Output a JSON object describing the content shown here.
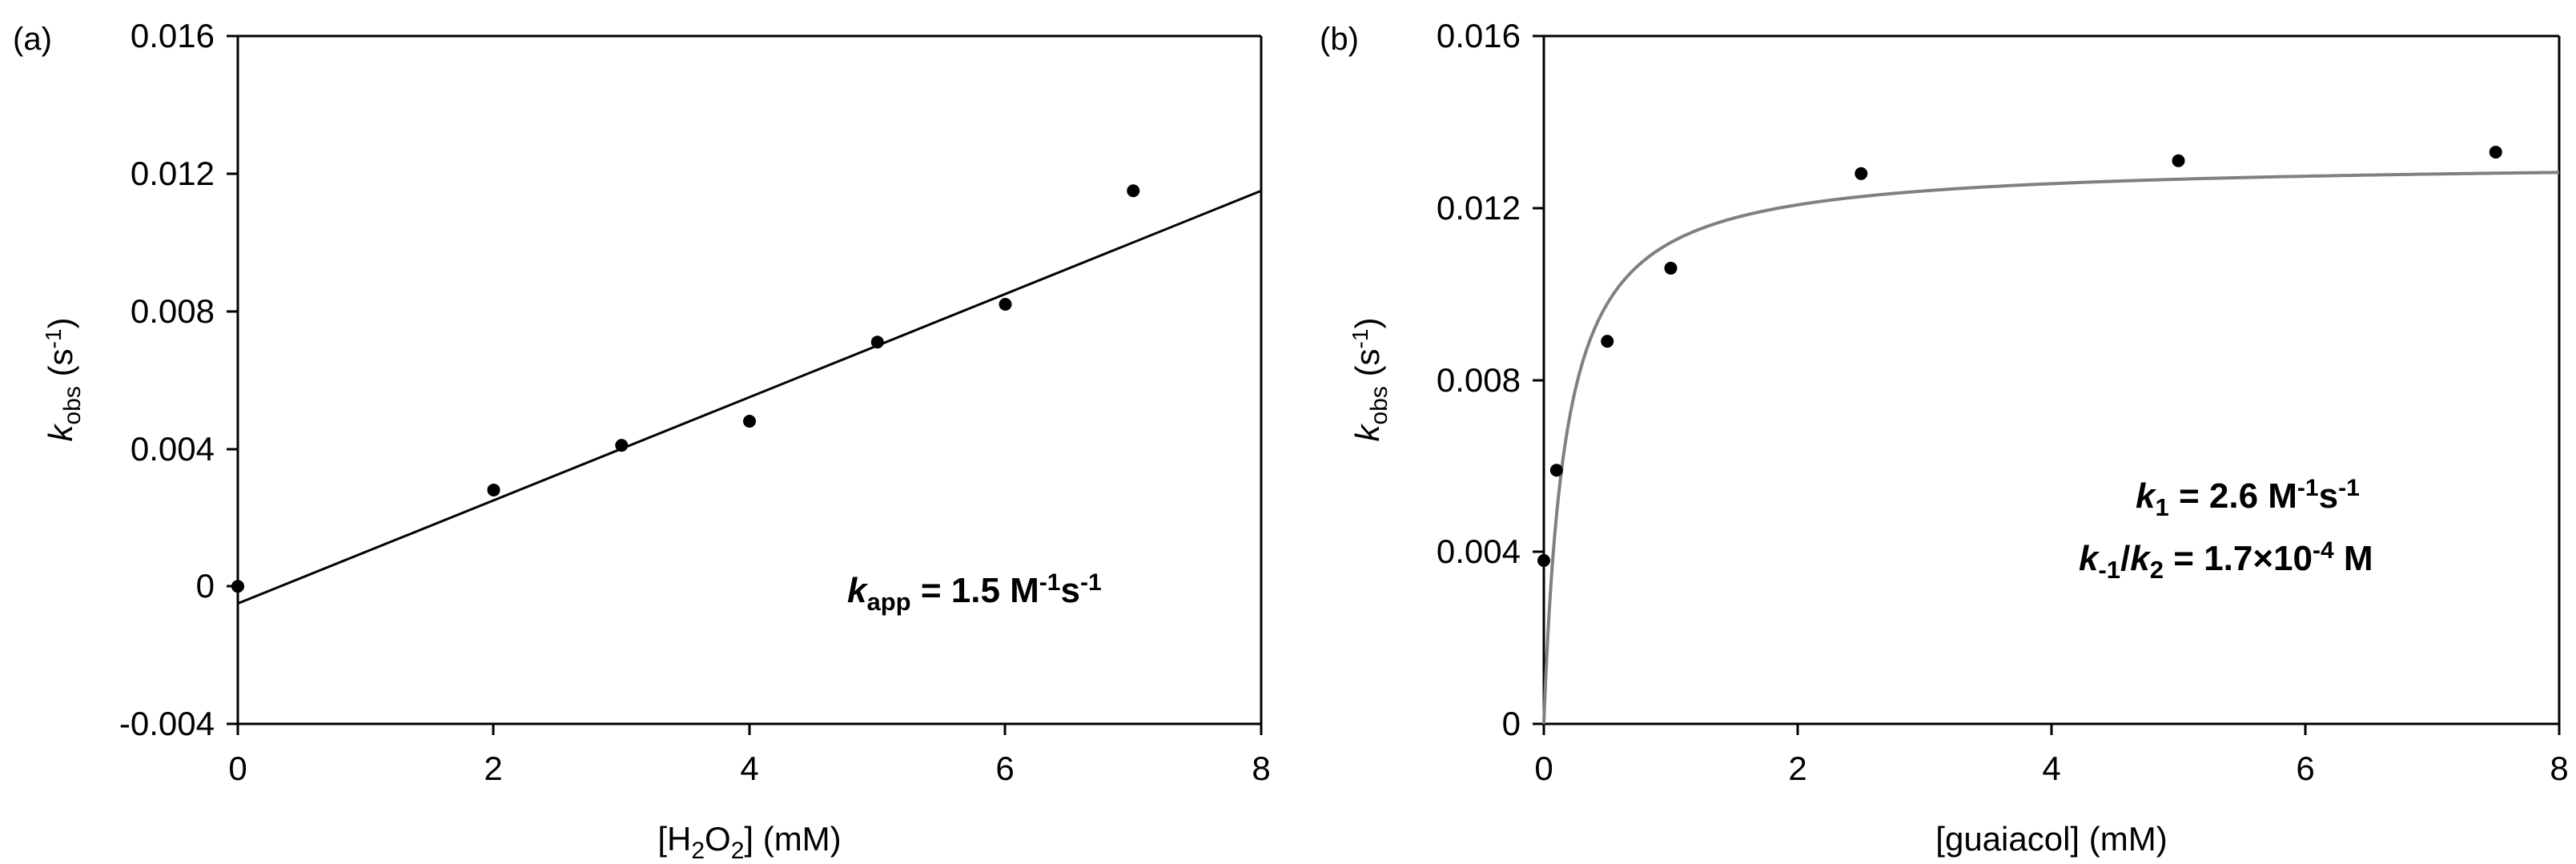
{
  "chart_data": [
    {
      "panel_label": "(a)",
      "type": "scatter",
      "xlabel_parts": [
        "[H",
        "2",
        "O",
        "2",
        "] (mM)"
      ],
      "ylabel_parts": [
        "k",
        "obs",
        " (s",
        "-1",
        ")"
      ],
      "xlim": [
        0,
        8
      ],
      "ylim": [
        -0.004,
        0.016
      ],
      "xticks": [
        "0",
        "2",
        "4",
        "6",
        "8"
      ],
      "yticks": [
        "-0.004",
        "0",
        "0.004",
        "0.008",
        "0.012",
        "0.016"
      ],
      "grid": false,
      "series": [
        {
          "marker": "dot",
          "x": [
            0,
            2,
            3,
            4,
            5,
            6,
            7
          ],
          "y": [
            0.0,
            0.0028,
            0.0041,
            0.0048,
            0.0071,
            0.0082,
            0.0115
          ]
        }
      ],
      "fit": {
        "kind": "linear",
        "slope": 0.0015,
        "intercept": -0.0005,
        "color": "#000000"
      },
      "annotations": [
        [
          "k",
          "app",
          " = 1.5 M",
          "-1",
          "s",
          "-1"
        ]
      ]
    },
    {
      "panel_label": "(b)",
      "type": "scatter",
      "xlabel_parts": [
        "[guaiacol] (mM)"
      ],
      "ylabel_parts": [
        "k",
        "obs",
        " (s",
        "-1",
        ")"
      ],
      "xlim": [
        0,
        8
      ],
      "ylim": [
        0,
        0.016
      ],
      "xticks": [
        "0",
        "2",
        "4",
        "6",
        "8"
      ],
      "yticks": [
        "0",
        "0.004",
        "0.008",
        "0.012",
        "0.016"
      ],
      "grid": false,
      "series": [
        {
          "marker": "dot",
          "x": [
            0,
            0.1,
            0.5,
            1.0,
            2.5,
            5.0,
            7.5
          ],
          "y": [
            0.0038,
            0.0059,
            0.0089,
            0.0106,
            0.0128,
            0.0131,
            0.0133
          ]
        }
      ],
      "fit": {
        "kind": "hyperbolic",
        "vmax": 0.0131,
        "km_mM": 0.17,
        "color": "#808080"
      },
      "annotations": [
        [
          "k",
          "1",
          " = 2.6 M",
          "-1",
          "s",
          "-1"
        ],
        [
          "k",
          "-1",
          "/",
          "k",
          "2",
          " = 1.7×10",
          "-4",
          " M"
        ]
      ]
    }
  ]
}
